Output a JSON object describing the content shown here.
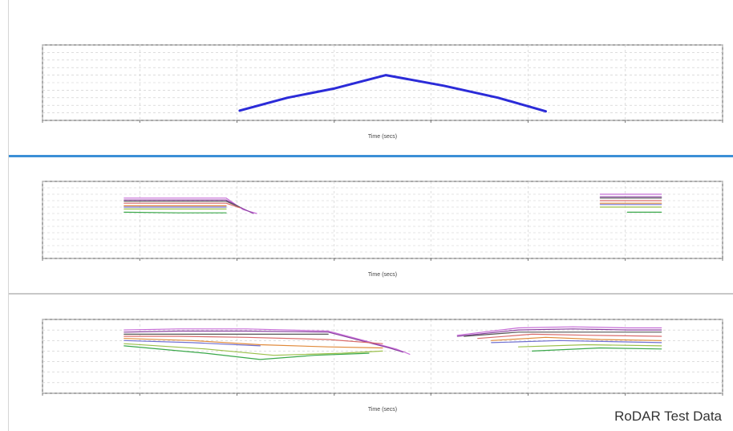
{
  "colors": {
    "separator_blue": "#3b8fd6",
    "separator_gray": "#c8c8c8",
    "grid": "#c9c9c9",
    "axis": "#555555",
    "text": "#444444"
  },
  "watermark": "RoDAR Test Data",
  "chart_data": [
    {
      "type": "line",
      "title": "",
      "subtitle": "",
      "xlabel": "Time (secs)",
      "ylabel": "",
      "grid": true,
      "xlim": [
        0,
        100
      ],
      "ylim": [
        -100,
        100
      ],
      "xticks": [
        0,
        14.3,
        28.6,
        42.9,
        57.1,
        71.4,
        85.7,
        100
      ],
      "yticks": [
        -100,
        -80,
        -60,
        -40,
        -20,
        0,
        20,
        40,
        60,
        80,
        100
      ],
      "series": [
        {
          "color": "#2b2bd8",
          "width": 3,
          "points": [
            [
              29,
              -74
            ],
            [
              36,
              -40
            ],
            [
              43,
              -15
            ],
            [
              50.5,
              20
            ],
            [
              59,
              -8
            ],
            [
              67,
              -40
            ],
            [
              74,
              -76
            ]
          ]
        }
      ]
    },
    {
      "type": "line",
      "title": "",
      "subtitle": "",
      "xlabel": "Time (secs)",
      "ylabel": "",
      "grid": true,
      "xlim": [
        0,
        100
      ],
      "ylim": [
        -10,
        50
      ],
      "xticks": [
        0,
        14.3,
        28.6,
        42.9,
        57.1,
        71.4,
        85.7,
        100
      ],
      "yticks": [
        -10,
        -5,
        0,
        5,
        10,
        15,
        20,
        25,
        30,
        35,
        40,
        45,
        50
      ],
      "series": [
        {
          "color": "#c86fd8",
          "points": [
            [
              12,
              37
            ],
            [
              27,
              37
            ],
            [
              29.5,
              28
            ],
            [
              31.5,
              25
            ]
          ],
          "points2": [
            [
              82,
              40
            ],
            [
              91,
              40
            ]
          ]
        },
        {
          "color": "#8a3fa0",
          "points": [
            [
              12,
              35.5
            ],
            [
              27,
              35.5
            ],
            [
              29,
              30
            ],
            [
              31,
              25
            ]
          ],
          "points2": [
            [
              82,
              38
            ],
            [
              91,
              38
            ]
          ]
        },
        {
          "color": "#555555",
          "points": [
            [
              12,
              34.5
            ],
            [
              27,
              34.5
            ],
            [
              29,
              30
            ]
          ],
          "points2": [
            [
              82,
              37
            ],
            [
              91,
              37
            ]
          ]
        },
        {
          "color": "#d96a6a",
          "points": [
            [
              12,
              33
            ],
            [
              27,
              33
            ],
            [
              29,
              29.5
            ]
          ],
          "points2": [
            [
              82,
              35
            ],
            [
              91,
              35
            ]
          ]
        },
        {
          "color": "#e08a3a",
          "points": [
            [
              12,
              31
            ],
            [
              27,
              31
            ]
          ],
          "points2": [
            [
              82,
              33
            ],
            [
              91,
              33
            ]
          ]
        },
        {
          "color": "#7070d0",
          "points": [
            [
              12,
              30
            ],
            [
              27,
              30
            ]
          ],
          "points2": [
            [
              82,
              32
            ],
            [
              91,
              32
            ]
          ]
        },
        {
          "color": "#9ac04a",
          "points": [
            [
              12,
              28.5
            ],
            [
              27,
              28.5
            ]
          ],
          "points2": [
            [
              82,
              30
            ],
            [
              91,
              30
            ]
          ]
        },
        {
          "color": "#3aa84a",
          "points": [
            [
              12,
              26
            ],
            [
              20,
              25.5
            ],
            [
              27,
              25.5
            ]
          ],
          "points2": [
            [
              86,
              26
            ],
            [
              91,
              26
            ]
          ]
        }
      ]
    },
    {
      "type": "line",
      "title": "",
      "subtitle": "",
      "xlabel": "Time (secs)",
      "ylabel": "",
      "grid": true,
      "xlim": [
        0,
        100
      ],
      "ylim": [
        -10,
        60
      ],
      "xticks": [
        0,
        14.3,
        28.6,
        42.9,
        57.1,
        71.4,
        85.7,
        100
      ],
      "yticks": [
        -10,
        0,
        10,
        20,
        30,
        40,
        50,
        60
      ],
      "series": [
        {
          "color": "#c86fd8",
          "points": [
            [
              12,
              50
            ],
            [
              20,
              51
            ],
            [
              30,
              51
            ],
            [
              42,
              49
            ],
            [
              52,
              32
            ],
            [
              54,
              27
            ]
          ],
          "points2": [
            [
              61,
              45
            ],
            [
              70,
              52
            ],
            [
              78,
              53
            ],
            [
              86,
              52
            ],
            [
              91,
              52
            ]
          ]
        },
        {
          "color": "#8a3fa0",
          "points": [
            [
              12,
              48
            ],
            [
              20,
              49
            ],
            [
              30,
              49
            ],
            [
              42,
              48
            ],
            [
              51,
              33
            ],
            [
              53,
              29
            ]
          ],
          "points2": [
            [
              61,
              44
            ],
            [
              70,
              50
            ],
            [
              78,
              51
            ],
            [
              86,
              50
            ],
            [
              91,
              50
            ]
          ]
        },
        {
          "color": "#555555",
          "points": [
            [
              12,
              46
            ],
            [
              20,
              46
            ],
            [
              30,
              46
            ],
            [
              42,
              46
            ]
          ],
          "points2": [
            [
              62,
              44
            ],
            [
              70,
              48
            ],
            [
              78,
              48
            ],
            [
              86,
              48
            ],
            [
              91,
              48
            ]
          ]
        },
        {
          "color": "#d96a6a",
          "points": [
            [
              12,
              44
            ],
            [
              20,
              44
            ],
            [
              30,
              43
            ],
            [
              42,
              41
            ],
            [
              50,
              37
            ]
          ],
          "points2": [
            [
              64,
              42
            ],
            [
              72,
              46
            ],
            [
              80,
              45
            ],
            [
              91,
              44
            ]
          ]
        },
        {
          "color": "#e08a3a",
          "points": [
            [
              12,
              42
            ],
            [
              22,
              40
            ],
            [
              32,
              36
            ],
            [
              42,
              34
            ],
            [
              50,
              33
            ]
          ],
          "points2": [
            [
              66,
              40
            ],
            [
              74,
              43
            ],
            [
              82,
              41
            ],
            [
              91,
              40
            ]
          ]
        },
        {
          "color": "#7070d0",
          "points": [
            [
              12,
              40
            ],
            [
              22,
              38
            ],
            [
              32,
              35
            ]
          ],
          "points2": [
            [
              66,
              38
            ],
            [
              76,
              40
            ],
            [
              91,
              38
            ]
          ]
        },
        {
          "color": "#9ac04a",
          "points": [
            [
              12,
              37
            ],
            [
              24,
              32
            ],
            [
              34,
              26
            ],
            [
              44,
              28
            ],
            [
              50,
              30
            ]
          ],
          "points2": [
            [
              70,
              34
            ],
            [
              80,
              36
            ],
            [
              91,
              35
            ]
          ]
        },
        {
          "color": "#3aa84a",
          "points": [
            [
              12,
              35
            ],
            [
              24,
              28
            ],
            [
              32,
              22
            ],
            [
              40,
              26
            ],
            [
              48,
              28
            ]
          ],
          "points2": [
            [
              72,
              30
            ],
            [
              82,
              33
            ],
            [
              91,
              32
            ]
          ]
        }
      ]
    }
  ]
}
